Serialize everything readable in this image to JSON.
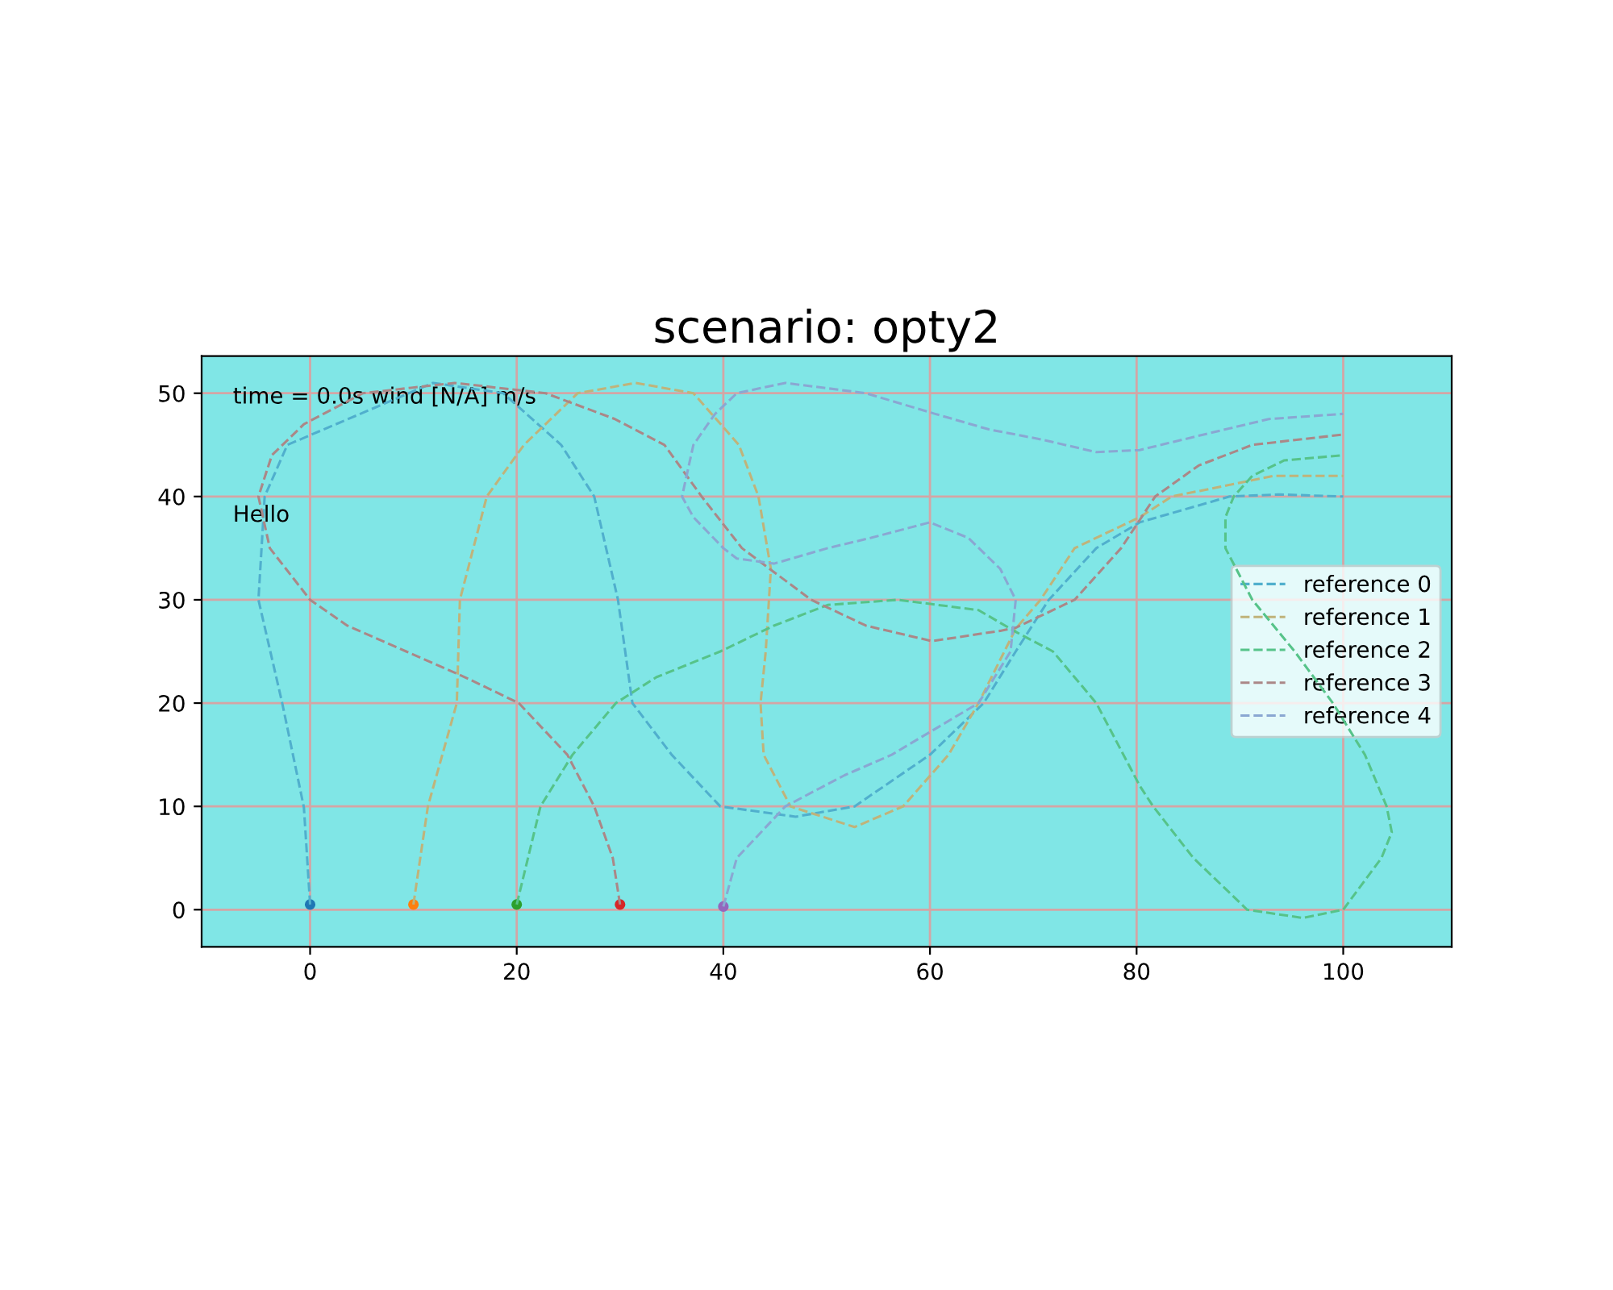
{
  "chart_data": {
    "type": "line",
    "title": "scenario: opty2",
    "xlim": [
      -10.5,
      110.5
    ],
    "ylim": [
      -3.6,
      53.6
    ],
    "xticks": [
      0,
      20,
      40,
      60,
      80,
      100
    ],
    "yticks": [
      0,
      10,
      20,
      30,
      40,
      50
    ],
    "grid": true,
    "legend": "right",
    "line_style": "dashed",
    "marker": "none",
    "annotations": [
      "time = 0.0s wind [N/A] m/s",
      "Hello"
    ],
    "series": [
      {
        "name": "reference 0",
        "color": "#50afcd",
        "x": [
          0,
          -0.6,
          -2.7,
          -5,
          -4.4,
          -2.2,
          11.9,
          18.7,
          24.3,
          27.5,
          29.8,
          31.2,
          35,
          39.7,
          47,
          52.7,
          60,
          65.2,
          68.3,
          71.5,
          76.1,
          80.3,
          89,
          93.8,
          100
        ],
        "values": [
          0.5,
          9.9,
          20,
          30,
          40,
          45,
          51,
          50,
          45,
          40,
          30,
          20,
          15,
          10,
          9,
          10,
          15,
          20,
          25,
          30,
          35,
          37.5,
          40,
          40.2,
          40
        ]
      },
      {
        "name": "reference 1",
        "color": "#c0b37a",
        "x": [
          10,
          11.4,
          14.2,
          14.5,
          17.1,
          20.7,
          25.9,
          31.5,
          37.1,
          41.5,
          43.4,
          44.6,
          44.1,
          43.6,
          43.9,
          46.5,
          52.7,
          57.4,
          61.8,
          64.7,
          68.3,
          70.7,
          74,
          80.3,
          83.4,
          93.3,
          100
        ],
        "values": [
          0.5,
          10,
          20,
          30,
          40,
          45,
          50,
          51,
          50,
          45,
          40,
          33,
          25,
          20,
          15,
          10,
          8,
          10,
          15,
          20,
          27.2,
          30,
          35,
          38,
          40,
          42,
          42
        ]
      },
      {
        "name": "reference 2",
        "color": "#56c389",
        "x": [
          20,
          22.3,
          25.4,
          29.6,
          33.5,
          39.7,
          44.9,
          50.1,
          56.9,
          64.7,
          68.3,
          71.9,
          76.1,
          80.3,
          81.6,
          85.5,
          90.7,
          96.1,
          100,
          103.7,
          104.7,
          104.2,
          102.1,
          99,
          95.3,
          91.2,
          88.6,
          88.6,
          89.4,
          91.2,
          94.3,
          100
        ],
        "values": [
          0.5,
          10,
          15,
          20,
          22.5,
          25,
          27.5,
          29.5,
          30,
          29,
          26.9,
          25,
          20,
          12,
          10,
          5,
          0,
          -0.8,
          0,
          5,
          7.5,
          10,
          15,
          20,
          25,
          30,
          35,
          38,
          40,
          42,
          43.5,
          44
        ]
      },
      {
        "name": "reference 3",
        "color": "#ab8787",
        "x": [
          30,
          29.3,
          27.5,
          24.9,
          20.2,
          15,
          9.3,
          3.6,
          0,
          -3.9,
          -5,
          -3.7,
          -0.6,
          5.1,
          14,
          22.8,
          29.5,
          34.3,
          37.9,
          41.8,
          48.5,
          53.8,
          60.2,
          66.8,
          68.3,
          74,
          78.5,
          81.8,
          86,
          91.2,
          100
        ],
        "values": [
          0.5,
          5,
          10,
          15,
          20,
          22.5,
          25,
          27.5,
          30,
          35,
          40,
          44,
          47,
          50,
          51,
          50,
          47.5,
          45,
          40,
          35,
          30,
          27.5,
          26,
          27,
          27.3,
          30,
          35,
          40,
          43,
          45,
          46
        ]
      },
      {
        "name": "reference 4",
        "color": "#8aa7d2",
        "x": [
          40,
          41.3,
          46,
          51.7,
          56.3,
          60.5,
          64.7,
          67.8,
          68.3,
          66.8,
          63.7,
          60,
          54.3,
          50.1,
          44.9,
          41.3,
          40,
          37.1,
          36,
          37.1,
          39.2,
          41.3,
          46,
          53.8,
          60.5,
          65.7,
          70.9,
          76.1,
          80.3,
          86.5,
          92.8,
          100
        ],
        "values": [
          0.3,
          5,
          10,
          13,
          15,
          17.5,
          20,
          25,
          30,
          33,
          36,
          37.5,
          36,
          35,
          33.5,
          34,
          35,
          38,
          40,
          45,
          48,
          50,
          51,
          50,
          48,
          46.5,
          45.5,
          44.3,
          44.5,
          46,
          47.5,
          48
        ]
      },
      {
        "type": "scatter",
        "marker": "circle",
        "x": [
          0
        ],
        "values": [
          0.5
        ],
        "color": "#1f77b4"
      },
      {
        "type": "scatter",
        "marker": "circle",
        "x": [
          10
        ],
        "values": [
          0.5
        ],
        "color": "#ff7f0e"
      },
      {
        "type": "scatter",
        "marker": "circle",
        "x": [
          20
        ],
        "values": [
          0.5
        ],
        "color": "#2ca02c"
      },
      {
        "type": "scatter",
        "marker": "circle",
        "x": [
          30
        ],
        "values": [
          0.5
        ],
        "color": "#d62728"
      },
      {
        "type": "scatter",
        "marker": "circle",
        "x": [
          40
        ],
        "values": [
          0.3
        ],
        "color": "#9467bd"
      }
    ]
  }
}
